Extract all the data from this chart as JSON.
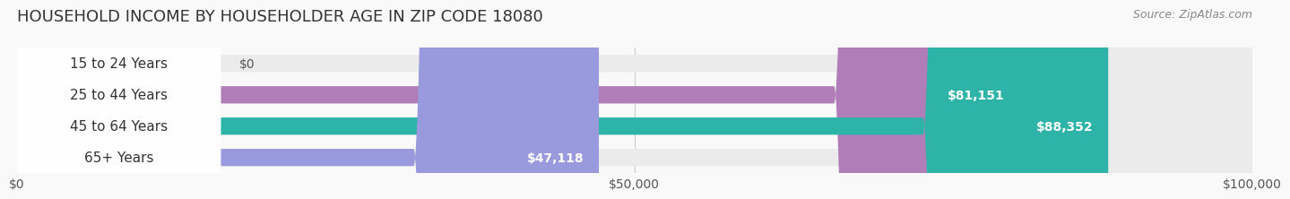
{
  "title": "HOUSEHOLD INCOME BY HOUSEHOLDER AGE IN ZIP CODE 18080",
  "source": "Source: ZipAtlas.com",
  "categories": [
    "15 to 24 Years",
    "25 to 44 Years",
    "45 to 64 Years",
    "65+ Years"
  ],
  "values": [
    0,
    81151,
    88352,
    47118
  ],
  "labels": [
    "$0",
    "$81,151",
    "$88,352",
    "$47,118"
  ],
  "bar_colors": [
    "#a8bfe8",
    "#b07db8",
    "#2db3a8",
    "#9999dd"
  ],
  "bar_bg_color": "#ebebeb",
  "bar_height": 0.55,
  "xlim": [
    0,
    100000
  ],
  "xticks": [
    0,
    50000,
    100000
  ],
  "xticklabels": [
    "$0",
    "$50,000",
    "$100,000"
  ],
  "title_fontsize": 13,
  "source_fontsize": 9,
  "label_fontsize": 10,
  "category_fontsize": 11,
  "background_color": "#f9f9f9"
}
